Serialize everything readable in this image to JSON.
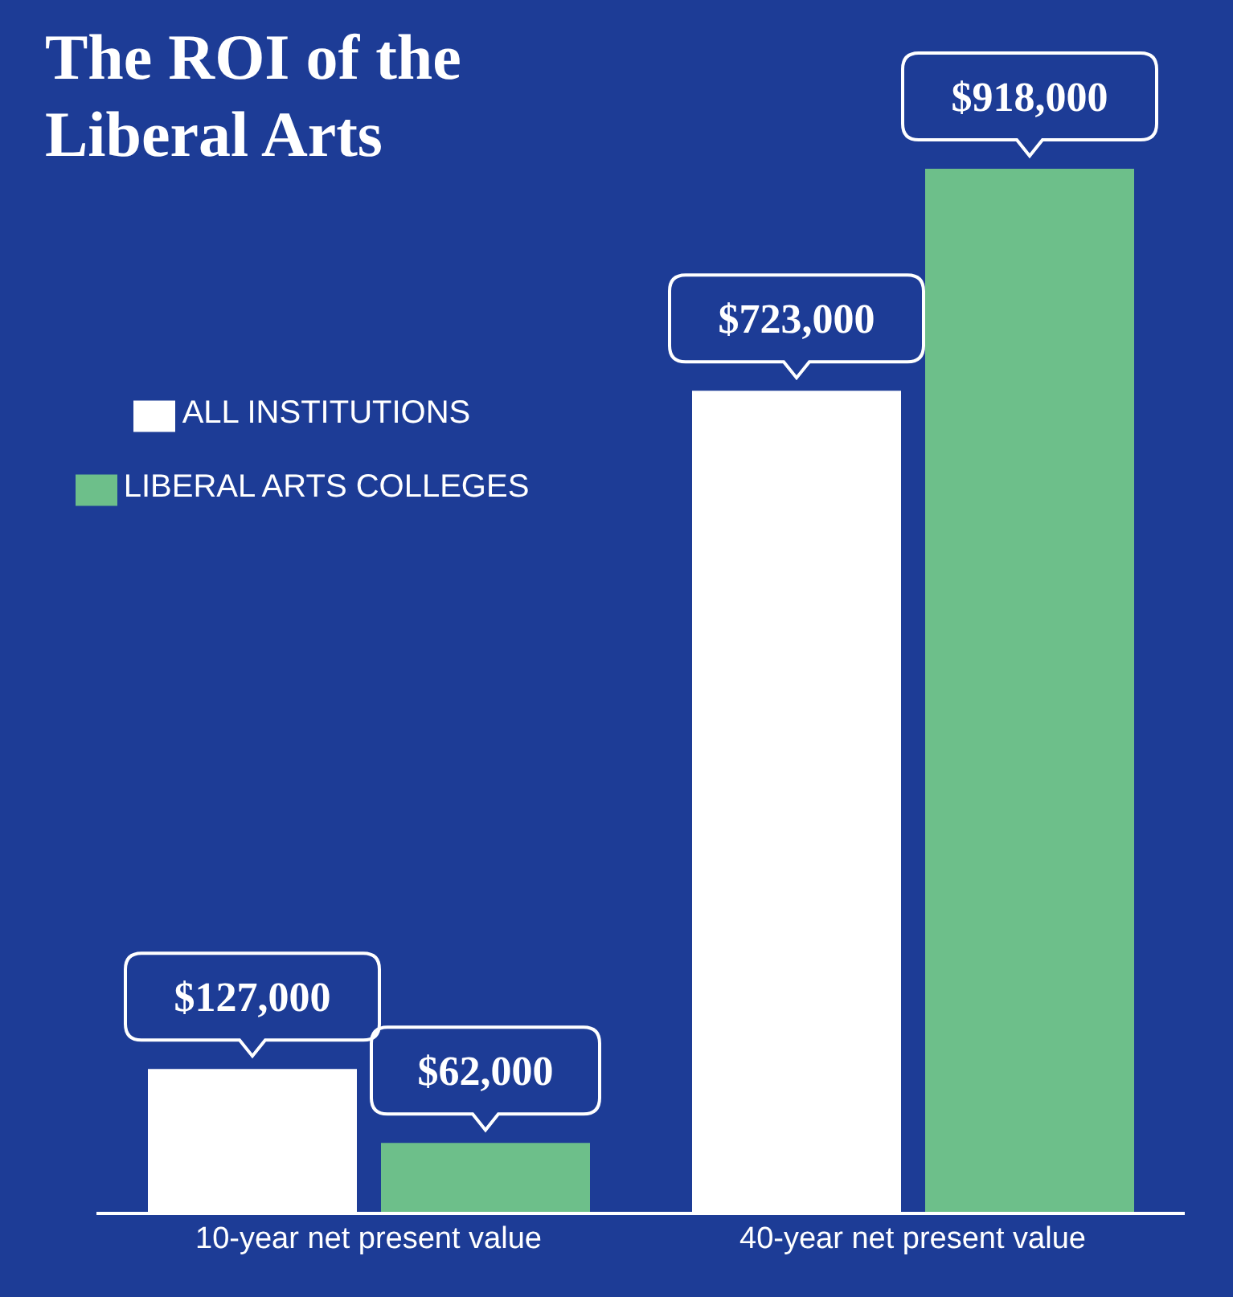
{
  "chart_data": {
    "type": "bar",
    "title": "The ROI of the Liberal Arts",
    "categories": [
      "10-year net present value",
      "40-year net present value"
    ],
    "series": [
      {
        "name": "ALL INSTITUTIONS",
        "color": "#ffffff",
        "values": [
          127000,
          723000
        ],
        "value_labels": [
          "$127,000",
          "$723,000"
        ]
      },
      {
        "name": "LIBERAL ARTS COLLEGES",
        "color": "#6dbf8a",
        "values": [
          62000,
          918000
        ],
        "value_labels": [
          "$62,000",
          "$918,000"
        ]
      }
    ],
    "legend": "top left"
  }
}
